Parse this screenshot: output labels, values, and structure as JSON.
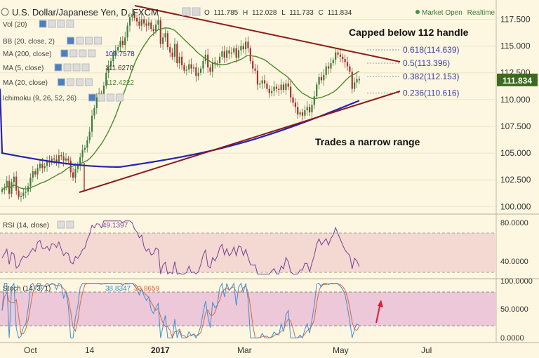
{
  "header": {
    "symbol_title": "U.S. Dollar/Japanese Yen, D, FXCM",
    "ohlc": {
      "o_label": "O",
      "o": "111.785",
      "h_label": "H",
      "h": "112.028",
      "l_label": "L",
      "l": "111.733",
      "c_label": "C",
      "c": "111.834"
    },
    "status": "Market Open",
    "mode": "Realtime"
  },
  "indicators": [
    {
      "label": "Vol (20)"
    },
    {
      "label": "BB (20, close, 2)"
    },
    {
      "label": "MA (200, close)",
      "value": "109.7578"
    },
    {
      "label": "MA (5, close)",
      "value": "111.6270"
    },
    {
      "label": "MA (20, close)",
      "value": "112.4222"
    },
    {
      "label": "Ichimoku (9, 26, 52, 26)"
    }
  ],
  "annotations": {
    "capped": "Capped below 112 handle",
    "range": "Trades a narrow range"
  },
  "fibonacci": [
    {
      "ratio": "0.618",
      "level": 114.639,
      "label": "0.618(114.639)"
    },
    {
      "ratio": "0.5",
      "level": 113.396,
      "label": "0.5(113.396)"
    },
    {
      "ratio": "0.382",
      "level": 112.153,
      "label": "0.382(112.153)"
    },
    {
      "ratio": "0.236",
      "level": 110.616,
      "label": "0.236(110.616)"
    }
  ],
  "price_axis": {
    "ticks": [
      "117.500",
      "115.000",
      "112.500",
      "110.000",
      "107.500",
      "105.000",
      "102.500",
      "100.000"
    ],
    "current": "111.834",
    "current_value": 111.834
  },
  "rsi": {
    "label": "RSI (14, close)",
    "value": "49.1397",
    "ticks": [
      "80.0000",
      "40.0000"
    ]
  },
  "stoch": {
    "label": "Stoch (14, 3, 1)",
    "value_k": "38.8347",
    "value_d": "33.8659",
    "ticks": [
      "100.0000",
      "50.0000",
      "0.0000"
    ]
  },
  "time_axis": [
    "Oct",
    "14",
    "2017",
    "Mar",
    "May",
    "Jul"
  ],
  "colors": {
    "up": "#3e7d3e",
    "down": "#a8322e",
    "trend": "#8b1a1a",
    "ma200": "#2323b5",
    "ma20": "#4d8a2e",
    "rsi": "#7d3c98",
    "stoch_k": "#3d8fd6",
    "stoch_d": "#e0643c",
    "price_tag": "#3d6b1e",
    "arrow": "#d81e3c"
  },
  "chart_data": {
    "type": "candlestick",
    "instrument": "USD/JPY",
    "timeframe": "D",
    "ylim": [
      99.3,
      119.3
    ],
    "candles": [
      101.6,
      101.8,
      102.4,
      101.2,
      102.3,
      102.8,
      101.5,
      100.9,
      101.0,
      101.3,
      101.4,
      101.9,
      102.7,
      103.3,
      103.0,
      103.6,
      104.0,
      103.6,
      103.8,
      104.3,
      104.1,
      104.5,
      104.4,
      104.1,
      104.8,
      104.7,
      104.3,
      104.5,
      104.3,
      103.2,
      102.7,
      103.5,
      103.9,
      104.6,
      105.3,
      105.5,
      106.2,
      107.0,
      108.5,
      109.2,
      110.2,
      110.6,
      110.3,
      111.3,
      112.5,
      113.1,
      113.6,
      114.2,
      114.6,
      114.9,
      115.5,
      115.1,
      115.8,
      116.9,
      117.7,
      118.0,
      117.6,
      117.3,
      116.9,
      117.5,
      117.1,
      116.9,
      117.2,
      116.6,
      116.4,
      117.0,
      117.4,
      115.2,
      115.8,
      116.2,
      114.9,
      114.4,
      114.0,
      115.2,
      113.4,
      114.0,
      113.2,
      112.7,
      112.8,
      113.3,
      112.9,
      113.0,
      112.2,
      112.5,
      112.9,
      113.6,
      114.2,
      113.0,
      112.6,
      113.5,
      113.3,
      113.4,
      114.0,
      114.5,
      113.9,
      114.6,
      114.3,
      114.4,
      114.8,
      113.9,
      114.6,
      115.0,
      114.7,
      115.4,
      114.8,
      113.6,
      112.9,
      112.7,
      111.4,
      111.5,
      111.8,
      111.5,
      111.0,
      110.6,
      110.8,
      111.2,
      111.0,
      110.9,
      111.4,
      110.9,
      111.5,
      111.2,
      110.2,
      109.7,
      109.3,
      108.6,
      108.8,
      108.5,
      109.0,
      109.3,
      108.8,
      109.5,
      110.3,
      111.4,
      112.1,
      111.8,
      112.3,
      113.1,
      112.9,
      113.4,
      113.7,
      114.4,
      114.2,
      114.0,
      113.8,
      113.5,
      113.1,
      112.6,
      111.0,
      111.6,
      111.9,
      111.8
    ]
  }
}
